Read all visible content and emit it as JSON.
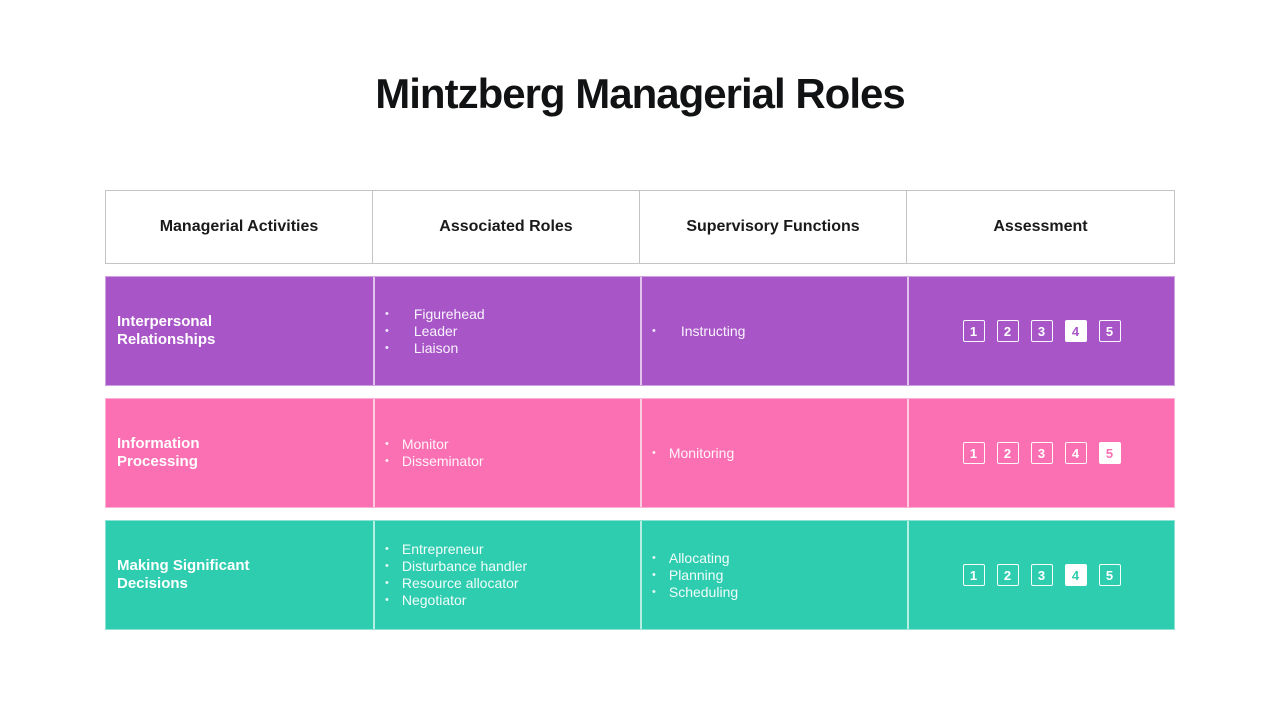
{
  "title": "Mintzberg Managerial Roles",
  "colors": {
    "row_purple": "#a855c8",
    "row_pink": "#fb6fb3",
    "row_teal": "#2fcdb0",
    "header_border": "#c4c4c4",
    "header_text": "#1a1a1a",
    "title_text": "#111213"
  },
  "table": {
    "headers": [
      "Managerial Activities",
      "Associated Roles",
      "Supervisory Functions",
      "Assessment"
    ],
    "rows": [
      {
        "activity": [
          "Interpersonal",
          "Relationships"
        ],
        "color": "#a855c8",
        "roles": [
          "Figurehead",
          "Leader",
          "Liaison"
        ],
        "functions": [
          "Instructing"
        ],
        "assessment": {
          "scale": [
            "1",
            "2",
            "3",
            "4",
            "5"
          ],
          "selected": "4"
        }
      },
      {
        "activity": [
          "Information",
          "Processing"
        ],
        "color": "#fb6fb3",
        "roles": [
          "Monitor",
          "Disseminator"
        ],
        "functions": [
          "Monitoring"
        ],
        "assessment": {
          "scale": [
            "1",
            "2",
            "3",
            "4",
            "5"
          ],
          "selected": "5"
        }
      },
      {
        "activity": [
          "Making Significant",
          "Decisions"
        ],
        "color": "#2fcdb0",
        "roles": [
          "Entrepreneur",
          "Disturbance handler",
          "Resource allocator",
          "Negotiator"
        ],
        "functions": [
          "Allocating",
          "Planning",
          "Scheduling"
        ],
        "assessment": {
          "scale": [
            "1",
            "2",
            "3",
            "4",
            "5"
          ],
          "selected": "4"
        }
      }
    ]
  }
}
